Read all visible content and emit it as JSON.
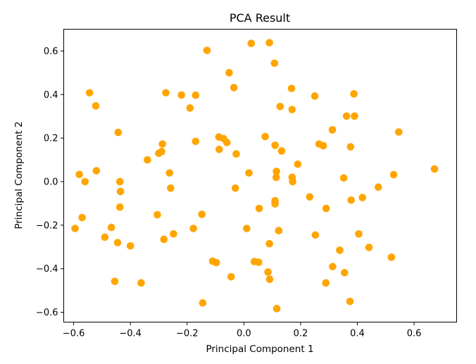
{
  "chart_data": {
    "type": "scatter",
    "title": "PCA Result",
    "xlabel": "Principal Component 1",
    "ylabel": "Principal Component 2",
    "xlim": [
      -0.635,
      0.75
    ],
    "ylim": [
      -0.645,
      0.7
    ],
    "xticks": [
      -0.6,
      -0.4,
      -0.2,
      0.0,
      0.2,
      0.4,
      0.6
    ],
    "yticks": [
      -0.6,
      -0.4,
      -0.2,
      0.0,
      0.2,
      0.4,
      0.6
    ],
    "xtick_labels": [
      "−0.6",
      "−0.4",
      "−0.2",
      "0.0",
      "0.2",
      "0.4",
      "0.6"
    ],
    "ytick_labels": [
      "−0.6",
      "−0.4",
      "−0.2",
      "0.0",
      "0.2",
      "0.4",
      "0.6"
    ],
    "grid": false,
    "marker_color": "#ffa500",
    "points": [
      {
        "x": 0.026,
        "y": 0.635
      },
      {
        "x": 0.09,
        "y": 0.638
      },
      {
        "x": -0.13,
        "y": 0.603
      },
      {
        "x": 0.108,
        "y": 0.544
      },
      {
        "x": -0.052,
        "y": 0.5
      },
      {
        "x": -0.035,
        "y": 0.432
      },
      {
        "x": 0.168,
        "y": 0.428
      },
      {
        "x": -0.544,
        "y": 0.408
      },
      {
        "x": -0.275,
        "y": 0.408
      },
      {
        "x": -0.22,
        "y": 0.398
      },
      {
        "x": -0.17,
        "y": 0.397
      },
      {
        "x": 0.25,
        "y": 0.393
      },
      {
        "x": 0.388,
        "y": 0.403
      },
      {
        "x": -0.522,
        "y": 0.348
      },
      {
        "x": -0.19,
        "y": 0.338
      },
      {
        "x": 0.128,
        "y": 0.345
      },
      {
        "x": 0.17,
        "y": 0.331
      },
      {
        "x": 0.362,
        "y": 0.301
      },
      {
        "x": 0.39,
        "y": 0.301
      },
      {
        "x": 0.312,
        "y": 0.238
      },
      {
        "x": 0.546,
        "y": 0.228
      },
      {
        "x": -0.443,
        "y": 0.226
      },
      {
        "x": -0.088,
        "y": 0.205
      },
      {
        "x": -0.072,
        "y": 0.198
      },
      {
        "x": 0.075,
        "y": 0.207
      },
      {
        "x": -0.06,
        "y": 0.18
      },
      {
        "x": -0.17,
        "y": 0.185
      },
      {
        "x": -0.287,
        "y": 0.173
      },
      {
        "x": 0.265,
        "y": 0.173
      },
      {
        "x": 0.28,
        "y": 0.165
      },
      {
        "x": 0.11,
        "y": 0.167
      },
      {
        "x": 0.376,
        "y": 0.16
      },
      {
        "x": -0.087,
        "y": 0.148
      },
      {
        "x": 0.133,
        "y": 0.141
      },
      {
        "x": -0.29,
        "y": 0.138
      },
      {
        "x": -0.3,
        "y": 0.13
      },
      {
        "x": -0.027,
        "y": 0.127
      },
      {
        "x": -0.34,
        "y": 0.1
      },
      {
        "x": 0.19,
        "y": 0.08
      },
      {
        "x": -0.52,
        "y": 0.05
      },
      {
        "x": 0.115,
        "y": 0.047
      },
      {
        "x": 0.018,
        "y": 0.04
      },
      {
        "x": -0.262,
        "y": 0.04
      },
      {
        "x": -0.58,
        "y": 0.033
      },
      {
        "x": 0.528,
        "y": 0.032
      },
      {
        "x": 0.114,
        "y": 0.02
      },
      {
        "x": 0.17,
        "y": 0.02
      },
      {
        "x": 0.352,
        "y": 0.017
      },
      {
        "x": -0.437,
        "y": 0.0
      },
      {
        "x": -0.56,
        "y": 0.0
      },
      {
        "x": 0.172,
        "y": 0.0
      },
      {
        "x": 0.672,
        "y": 0.058
      },
      {
        "x": -0.258,
        "y": -0.03
      },
      {
        "x": -0.03,
        "y": -0.03
      },
      {
        "x": 0.474,
        "y": -0.025
      },
      {
        "x": -0.435,
        "y": -0.045
      },
      {
        "x": 0.232,
        "y": -0.07
      },
      {
        "x": 0.418,
        "y": -0.073
      },
      {
        "x": 0.378,
        "y": -0.085
      },
      {
        "x": 0.11,
        "y": -0.088
      },
      {
        "x": 0.11,
        "y": -0.102
      },
      {
        "x": -0.437,
        "y": -0.117
      },
      {
        "x": 0.054,
        "y": -0.123
      },
      {
        "x": 0.29,
        "y": -0.123
      },
      {
        "x": -0.148,
        "y": -0.15
      },
      {
        "x": -0.305,
        "y": -0.152
      },
      {
        "x": -0.57,
        "y": -0.165
      },
      {
        "x": -0.595,
        "y": -0.215
      },
      {
        "x": -0.467,
        "y": -0.21
      },
      {
        "x": -0.178,
        "y": -0.215
      },
      {
        "x": 0.01,
        "y": -0.215
      },
      {
        "x": 0.123,
        "y": -0.225
      },
      {
        "x": -0.248,
        "y": -0.24
      },
      {
        "x": 0.405,
        "y": -0.24
      },
      {
        "x": 0.252,
        "y": -0.245
      },
      {
        "x": -0.49,
        "y": -0.255
      },
      {
        "x": -0.282,
        "y": -0.265
      },
      {
        "x": -0.445,
        "y": -0.28
      },
      {
        "x": 0.09,
        "y": -0.285
      },
      {
        "x": -0.4,
        "y": -0.295
      },
      {
        "x": 0.441,
        "y": -0.302
      },
      {
        "x": 0.338,
        "y": -0.315
      },
      {
        "x": 0.52,
        "y": -0.347
      },
      {
        "x": -0.11,
        "y": -0.365
      },
      {
        "x": -0.097,
        "y": -0.372
      },
      {
        "x": 0.037,
        "y": -0.367
      },
      {
        "x": 0.052,
        "y": -0.37
      },
      {
        "x": 0.313,
        "y": -0.39
      },
      {
        "x": 0.085,
        "y": -0.415
      },
      {
        "x": 0.355,
        "y": -0.418
      },
      {
        "x": -0.045,
        "y": -0.437
      },
      {
        "x": 0.091,
        "y": -0.448
      },
      {
        "x": -0.455,
        "y": -0.458
      },
      {
        "x": -0.362,
        "y": -0.465
      },
      {
        "x": 0.289,
        "y": -0.465
      },
      {
        "x": 0.374,
        "y": -0.55
      },
      {
        "x": -0.145,
        "y": -0.557
      },
      {
        "x": 0.116,
        "y": -0.583
      }
    ]
  }
}
